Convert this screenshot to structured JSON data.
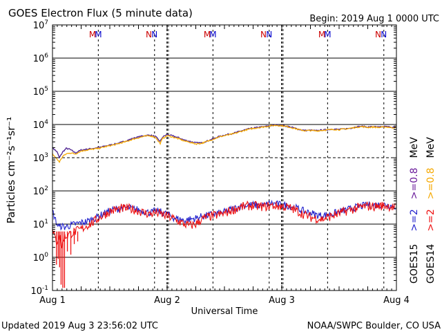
{
  "header": {
    "title": "GOES Electron Flux (5 minute data)",
    "begin": "Begin: 2019 Aug 1 0000 UTC"
  },
  "footer": {
    "updated": "Updated 2019 Aug  3 23:56:02 UTC",
    "credit": "NOAA/SWPC Boulder, CO USA"
  },
  "markers": {
    "labels": [
      {
        "day": 0.35,
        "text": "M",
        "color": "#cc0000"
      },
      {
        "day": 0.4,
        "text": "M",
        "color": "#0000cc"
      },
      {
        "day": 0.84,
        "text": "N",
        "color": "#cc0000"
      },
      {
        "day": 0.89,
        "text": "N",
        "color": "#0000cc"
      },
      {
        "day": 1.35,
        "text": "M",
        "color": "#cc0000"
      },
      {
        "day": 1.4,
        "text": "M",
        "color": "#0000cc"
      },
      {
        "day": 1.84,
        "text": "N",
        "color": "#cc0000"
      },
      {
        "day": 1.89,
        "text": "N",
        "color": "#0000cc"
      },
      {
        "day": 2.35,
        "text": "M",
        "color": "#cc0000"
      },
      {
        "day": 2.4,
        "text": "M",
        "color": "#0000cc"
      },
      {
        "day": 2.84,
        "text": "N",
        "color": "#cc0000"
      },
      {
        "day": 2.89,
        "text": "N",
        "color": "#0000cc"
      }
    ]
  },
  "legend": {
    "rows": [
      {
        "id": "goes15",
        "sat": "GOES15",
        "low": ">=2",
        "high": ">=0.8",
        "unit": "MeV",
        "low_color": "#2222cc",
        "high_color": "#6a1b9a"
      },
      {
        "id": "goes14",
        "sat": "GOES14",
        "low": ">=2",
        "high": ">=0.8",
        "unit": "MeV",
        "low_color": "#ee1111",
        "high_color": "#f5a800"
      }
    ]
  },
  "chart_data": {
    "type": "line",
    "ylabel": "Particles cm⁻²s⁻¹sr⁻¹",
    "xlabel": "Universal Time",
    "x_ticks": [
      "Aug 1",
      "Aug 2",
      "Aug 3",
      "Aug 4"
    ],
    "x_range_days": [
      0,
      3
    ],
    "y_scale": "log",
    "ylim": [
      0.1,
      10000000
    ],
    "y_ticks": [
      {
        "base": "10",
        "exp": "-1"
      },
      {
        "base": "10",
        "exp": "0"
      },
      {
        "base": "10",
        "exp": "1"
      },
      {
        "base": "10",
        "exp": "2"
      },
      {
        "base": "10",
        "exp": "3"
      },
      {
        "base": "10",
        "exp": "4"
      },
      {
        "base": "10",
        "exp": "5"
      },
      {
        "base": "10",
        "exp": "6"
      },
      {
        "base": "10",
        "exp": "7"
      }
    ],
    "threshold": 1000,
    "series": [
      {
        "name": "GOES15 >=0.8 MeV",
        "color": "#4b1f8f",
        "x": [
          0,
          0.04,
          0.06,
          0.09,
          0.12,
          0.15,
          0.2,
          0.25,
          0.3,
          0.35,
          0.4,
          0.45,
          0.5,
          0.55,
          0.6,
          0.65,
          0.7,
          0.75,
          0.8,
          0.85,
          0.9,
          0.92,
          0.94,
          0.96,
          1.0,
          1.05,
          1.1,
          1.15,
          1.2,
          1.25,
          1.3,
          1.35,
          1.4,
          1.45,
          1.5,
          1.55,
          1.6,
          1.65,
          1.7,
          1.75,
          1.8,
          1.85,
          1.9,
          1.95,
          2.0,
          2.05,
          2.1,
          2.15,
          2.2,
          2.25,
          2.3,
          2.35,
          2.4,
          2.45,
          2.5,
          2.55,
          2.6,
          2.65,
          2.7,
          2.75,
          2.8,
          2.85,
          2.9,
          2.95,
          3.0
        ],
        "y": [
          2000,
          1500,
          1000,
          1500,
          1900,
          1800,
          1400,
          1700,
          1800,
          1900,
          2000,
          2200,
          2400,
          2600,
          2900,
          3300,
          3800,
          4200,
          4600,
          4800,
          4300,
          3600,
          3100,
          4200,
          5000,
          4500,
          4000,
          3400,
          3100,
          2800,
          2800,
          3200,
          3700,
          4300,
          4800,
          5200,
          5700,
          6500,
          7200,
          7800,
          8300,
          8600,
          9300,
          9600,
          9400,
          8800,
          8000,
          7100,
          6600,
          6700,
          6500,
          6800,
          7000,
          7300,
          7100,
          7400,
          7800,
          8500,
          8800,
          8400,
          8600,
          8300,
          8700,
          8400,
          8100
        ]
      },
      {
        "name": "GOES14 >=0.8 MeV",
        "color": "#f5a800",
        "x": [
          0,
          0.04,
          0.06,
          0.09,
          0.12,
          0.15,
          0.2,
          0.25,
          0.3,
          0.35,
          0.4,
          0.45,
          0.5,
          0.55,
          0.6,
          0.65,
          0.7,
          0.75,
          0.8,
          0.85,
          0.9,
          0.92,
          0.94,
          0.96,
          1.0,
          1.05,
          1.1,
          1.15,
          1.2,
          1.25,
          1.3,
          1.35,
          1.4,
          1.45,
          1.5,
          1.55,
          1.6,
          1.65,
          1.7,
          1.75,
          1.8,
          1.85,
          1.9,
          1.95,
          2.0,
          2.05,
          2.1,
          2.15,
          2.2,
          2.25,
          2.3,
          2.35,
          2.4,
          2.45,
          2.5,
          2.55,
          2.6,
          2.65,
          2.7,
          2.75,
          2.8,
          2.85,
          2.9,
          2.95,
          3.0
        ],
        "y": [
          1300,
          900,
          750,
          1100,
          1300,
          1400,
          1300,
          1600,
          1700,
          1800,
          1900,
          2100,
          2300,
          2500,
          2800,
          3100,
          3600,
          4000,
          4400,
          4600,
          4100,
          3200,
          2700,
          3800,
          4600,
          4200,
          3700,
          3200,
          2900,
          2600,
          2700,
          3100,
          3600,
          4200,
          4600,
          5000,
          5500,
          6300,
          7000,
          7600,
          8100,
          8500,
          9100,
          9500,
          9200,
          8600,
          7800,
          7000,
          6500,
          6600,
          6400,
          6700,
          6900,
          7100,
          7000,
          7300,
          7700,
          8300,
          8600,
          8200,
          8400,
          8100,
          8500,
          8200,
          7900
        ]
      },
      {
        "name": "GOES15 >=2 MeV",
        "color": "#2222cc",
        "x": [
          0,
          0.02,
          0.04,
          0.06,
          0.08,
          0.1,
          0.15,
          0.2,
          0.25,
          0.3,
          0.35,
          0.4,
          0.45,
          0.5,
          0.55,
          0.6,
          0.65,
          0.7,
          0.75,
          0.8,
          0.85,
          0.9,
          0.95,
          1.0,
          1.05,
          1.1,
          1.15,
          1.2,
          1.25,
          1.3,
          1.35,
          1.4,
          1.45,
          1.5,
          1.55,
          1.6,
          1.65,
          1.7,
          1.75,
          1.8,
          1.85,
          1.9,
          1.95,
          2.0,
          2.05,
          2.1,
          2.15,
          2.2,
          2.25,
          2.3,
          2.35,
          2.4,
          2.45,
          2.5,
          2.55,
          2.6,
          2.65,
          2.7,
          2.75,
          2.8,
          2.85,
          2.9,
          2.95,
          3.0
        ],
        "y": [
          25,
          15,
          10,
          8,
          9,
          8,
          9,
          10,
          11,
          12,
          14,
          17,
          21,
          25,
          28,
          30,
          31,
          29,
          27,
          24,
          22,
          25,
          23,
          20,
          16,
          14,
          13,
          14,
          15,
          17,
          18,
          20,
          21,
          23,
          27,
          31,
          35,
          37,
          38,
          36,
          37,
          43,
          40,
          38,
          36,
          33,
          28,
          24,
          22,
          19,
          18,
          19,
          21,
          23,
          26,
          29,
          32,
          35,
          38,
          37,
          38,
          39,
          36,
          34
        ]
      },
      {
        "name": "GOES14 >=2 MeV",
        "color": "#ee1111",
        "x": [
          0,
          0.02,
          0.04,
          0.06,
          0.08,
          0.1,
          0.15,
          0.2,
          0.25,
          0.3,
          0.35,
          0.4,
          0.45,
          0.5,
          0.55,
          0.6,
          0.65,
          0.7,
          0.75,
          0.8,
          0.85,
          0.9,
          0.95,
          1.0,
          1.05,
          1.1,
          1.15,
          1.2,
          1.25,
          1.3,
          1.35,
          1.4,
          1.45,
          1.5,
          1.55,
          1.6,
          1.65,
          1.7,
          1.75,
          1.8,
          1.85,
          1.9,
          1.95,
          2.0,
          2.05,
          2.1,
          2.15,
          2.2,
          2.25,
          2.3,
          2.35,
          2.4,
          2.45,
          2.5,
          2.55,
          2.6,
          2.65,
          2.7,
          2.75,
          2.8,
          2.85,
          2.9,
          2.95,
          3.0
        ],
        "y": [
          6,
          4,
          3,
          5,
          2,
          4,
          5,
          6,
          7,
          9,
          11,
          15,
          19,
          24,
          27,
          29,
          30,
          28,
          25,
          22,
          20,
          22,
          20,
          17,
          15,
          12,
          10,
          9,
          10,
          14,
          16,
          18,
          19,
          21,
          25,
          29,
          33,
          35,
          36,
          34,
          33,
          36,
          35,
          34,
          32,
          28,
          23,
          19,
          16,
          15,
          14,
          16,
          18,
          21,
          24,
          27,
          30,
          33,
          35,
          34,
          35,
          36,
          34,
          30
        ]
      }
    ],
    "dropouts": {
      "name": "GOES14 >=2 MeV dips",
      "color": "#ee1111",
      "x": [
        0.035,
        0.05,
        0.062,
        0.075,
        0.09,
        0.105,
        0.13,
        0.16,
        0.19,
        0.22
      ],
      "y": [
        0.6,
        0.9,
        0.5,
        0.15,
        0.12,
        0.12,
        1.5,
        1.2,
        2.5,
        3
      ]
    }
  }
}
